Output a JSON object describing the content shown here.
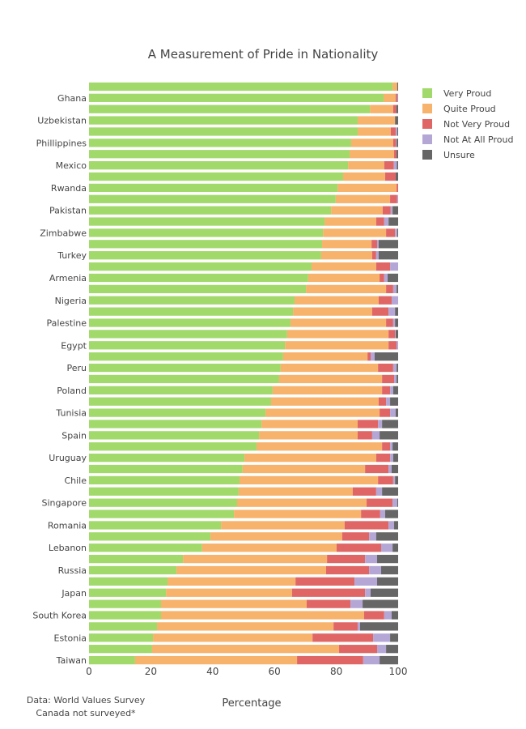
{
  "chart_data": {
    "type": "bar",
    "orientation": "horizontal",
    "stacked": true,
    "title": "A Measurement of Pride in Nationality",
    "xlabel": "Percentage",
    "ylabel": "",
    "xlim": [
      0,
      100
    ],
    "xticks": [
      "0",
      "20",
      "40",
      "60",
      "80",
      "100"
    ],
    "grid": false,
    "legend_position": "top-right",
    "annotations": [
      "Data: World Values Survey",
      "Canada not surveyed*"
    ],
    "categories": [
      "",
      "Ghana",
      "",
      "Uzbekistan",
      "",
      "Phillippines",
      "",
      "Mexico",
      "",
      "Rwanda",
      "",
      "Pakistan",
      "",
      "Zimbabwe",
      "",
      "Turkey",
      "",
      "Armenia",
      "",
      "Nigeria",
      "",
      "Palestine",
      "",
      "Egypt",
      "",
      "Peru",
      "",
      "Poland",
      "",
      "Tunisia",
      "",
      "Spain",
      "",
      "Uruguay",
      "",
      "Chile",
      "",
      "Singapore",
      "",
      "Romania",
      "",
      "Lebanon",
      "",
      "Russia",
      "",
      "Japan",
      "",
      "South Korea",
      "",
      "Estonia",
      "",
      "Taiwan"
    ],
    "series": [
      {
        "name": "Very Proud",
        "color": "#a1d96a",
        "values": [
          98.2,
          95.3,
          90.9,
          86.9,
          86.9,
          84.8,
          84.3,
          83.8,
          82.2,
          80.4,
          79.8,
          78.3,
          76.2,
          75.7,
          75.4,
          75.1,
          72.0,
          70.9,
          70.2,
          66.5,
          66.0,
          65.2,
          64.1,
          63.4,
          62.8,
          62.0,
          61.5,
          59.4,
          58.9,
          57.1,
          55.8,
          55.0,
          54.2,
          50.3,
          49.7,
          48.7,
          48.4,
          47.9,
          46.9,
          42.7,
          39.3,
          36.6,
          30.4,
          28.3,
          25.4,
          24.9,
          23.3,
          23.3,
          22.0,
          20.7,
          20.4,
          14.9
        ]
      },
      {
        "name": "Quite Proud",
        "color": "#f7b26b",
        "values": [
          1.5,
          3.9,
          7.5,
          12.1,
          10.7,
          13.6,
          14.4,
          11.7,
          13.6,
          19.1,
          17.6,
          16.7,
          16.7,
          20.4,
          16.0,
          16.5,
          20.9,
          23.1,
          25.9,
          27.2,
          25.6,
          30.9,
          32.8,
          33.5,
          27.3,
          31.5,
          33.3,
          35.4,
          34.8,
          36.9,
          31.1,
          31.9,
          40.6,
          42.6,
          39.6,
          44.8,
          36.9,
          41.9,
          41.1,
          40.0,
          42.6,
          43.5,
          46.6,
          48.4,
          41.4,
          40.8,
          47.1,
          65.7,
          57.1,
          51.6,
          60.5,
          52.4
        ]
      },
      {
        "name": "Not Very Proud",
        "color": "#e06666",
        "values": [
          0,
          0.5,
          1.0,
          0,
          1.6,
          0.9,
          0.8,
          3.1,
          3.4,
          0.5,
          2.3,
          2.6,
          2.6,
          2.9,
          1.8,
          1.3,
          4.5,
          1.5,
          2.3,
          4.2,
          5.3,
          2.3,
          2.1,
          2.6,
          1.0,
          4.9,
          3.9,
          2.6,
          2.4,
          3.4,
          6.6,
          4.7,
          2.6,
          4.5,
          7.6,
          4.9,
          7.6,
          8.4,
          6.2,
          14.2,
          8.7,
          14.4,
          12.3,
          13.9,
          19.1,
          23.6,
          14.2,
          6.5,
          7.8,
          19.6,
          12.3,
          21.4
        ]
      },
      {
        "name": "Not At All Proud",
        "color": "#b4a7d6",
        "values": [
          0,
          0.2,
          0,
          0,
          0.5,
          0.2,
          0,
          1.0,
          0,
          0,
          0.3,
          0.6,
          1.4,
          0.7,
          0.5,
          0.8,
          2.6,
          1.1,
          1.1,
          2.1,
          2.1,
          0.6,
          0.2,
          0.5,
          1.3,
          1.1,
          0.8,
          1.0,
          1.3,
          1.8,
          1.3,
          2.4,
          0.8,
          1.0,
          1.0,
          0.6,
          1.9,
          1.5,
          1.6,
          1.8,
          2.3,
          3.7,
          3.9,
          3.9,
          7.3,
          1.8,
          3.9,
          2.4,
          0.8,
          5.5,
          2.9,
          5.3
        ]
      },
      {
        "name": "Unsure",
        "color": "#666666",
        "values": [
          0.3,
          0.1,
          0.6,
          1.0,
          0.3,
          0.5,
          0.5,
          0.4,
          0.8,
          0,
          0,
          1.8,
          3.1,
          0.3,
          6.3,
          6.3,
          0,
          3.4,
          0.5,
          0,
          1.0,
          1.0,
          0.8,
          0,
          7.6,
          0.5,
          0.5,
          1.6,
          2.6,
          0.8,
          5.2,
          6.0,
          1.8,
          1.6,
          2.1,
          1.0,
          5.2,
          0.3,
          4.2,
          1.3,
          7.1,
          1.8,
          6.8,
          5.5,
          6.8,
          8.9,
          11.5,
          2.1,
          12.3,
          2.6,
          3.9,
          6.0
        ]
      }
    ]
  }
}
